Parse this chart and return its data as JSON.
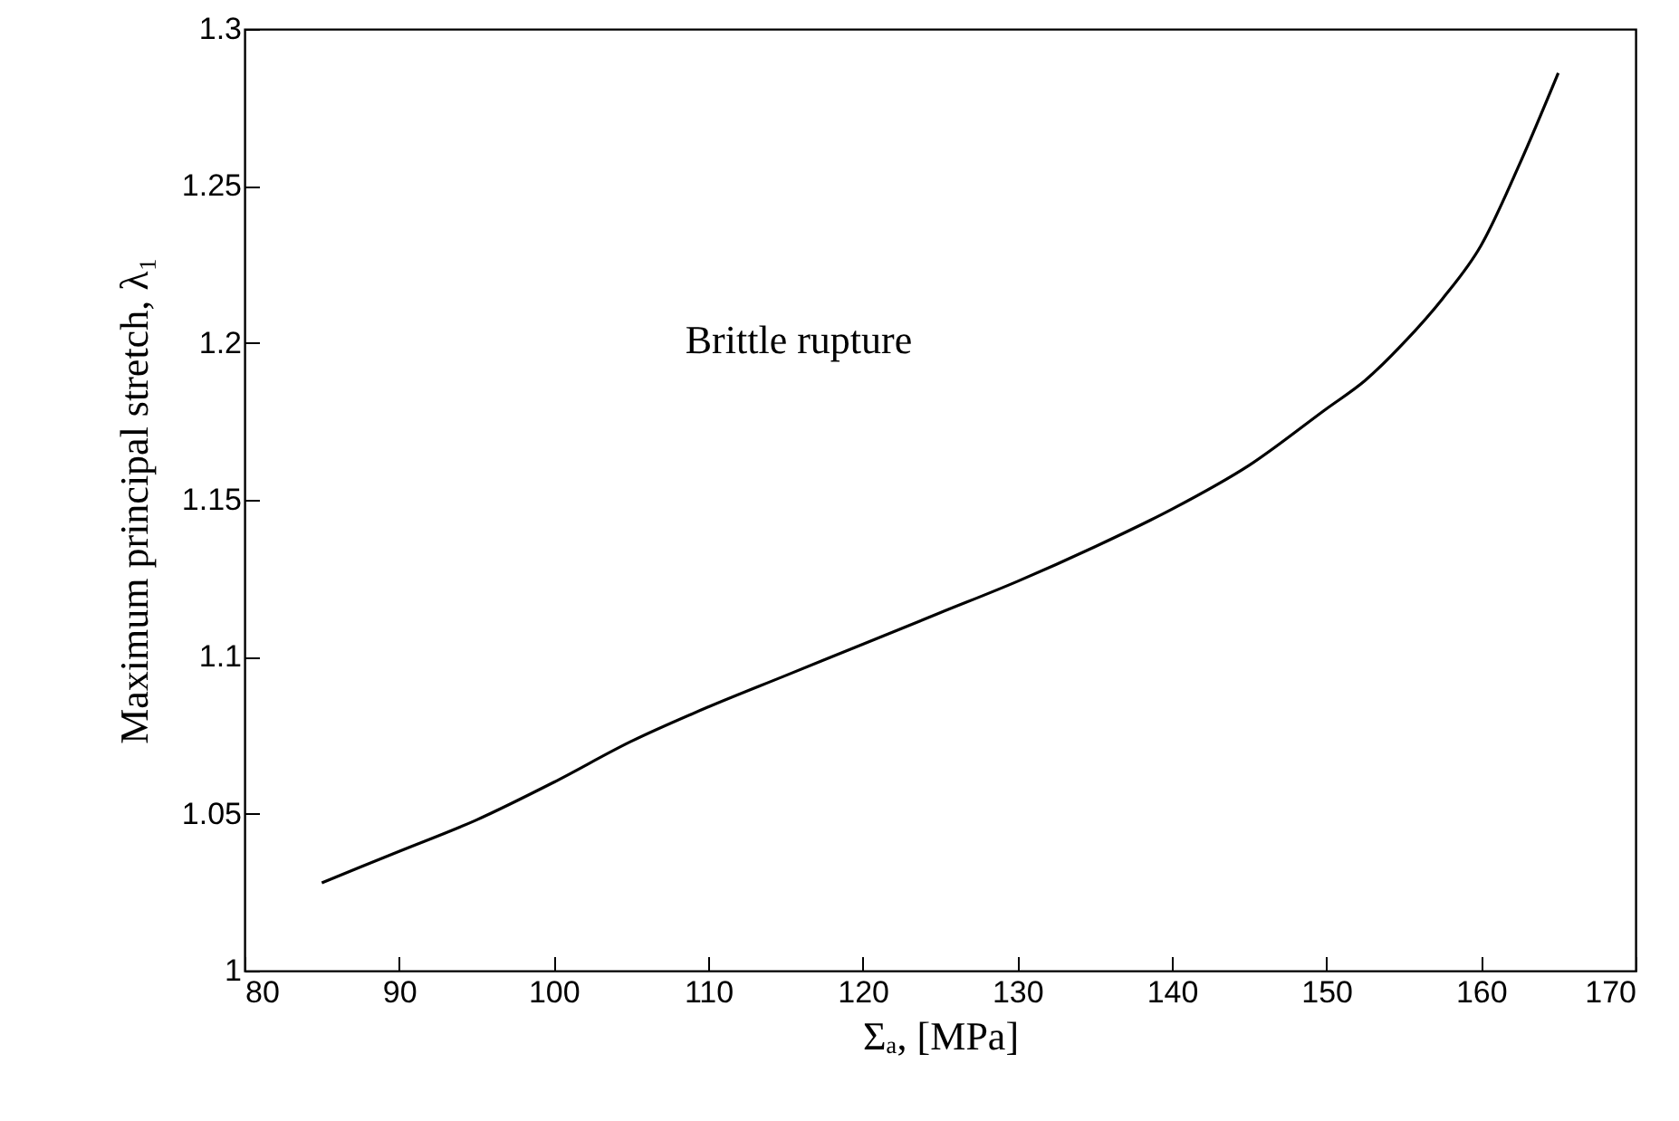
{
  "chart_data": {
    "type": "line",
    "xlabel": "Σₐ, [MPa]",
    "ylabel": "Maximum principal stretch, λ₁",
    "annotations": [
      "Brittle rupture"
    ],
    "x": [
      85,
      90,
      95,
      100,
      105,
      110,
      115,
      120,
      125,
      130,
      135,
      140,
      145,
      150,
      152.5,
      155,
      157.5,
      160,
      162.5,
      165
    ],
    "series": [
      {
        "color": "#000000",
        "values": [
          1.028,
          1.038,
          1.048,
          1.06,
          1.073,
          1.084,
          1.094,
          1.104,
          1.114,
          1.124,
          1.135,
          1.147,
          1.161,
          1.179,
          1.188,
          1.2,
          1.214,
          1.231,
          1.257,
          1.286
        ]
      }
    ],
    "xlim": [
      80,
      170
    ],
    "xticks": [
      80,
      90,
      100,
      110,
      120,
      130,
      140,
      150,
      160,
      170
    ],
    "ylim": [
      1,
      1.3
    ],
    "yticks": [
      1,
      1.05,
      1.1,
      1.15,
      1.2,
      1.25,
      1.3
    ],
    "grid": false,
    "marker": "none",
    "line_style": "solid"
  }
}
